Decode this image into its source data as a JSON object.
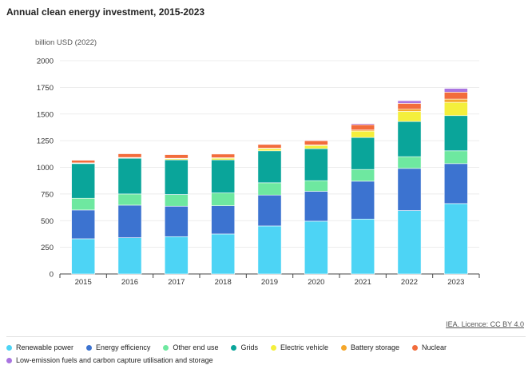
{
  "chart_data": {
    "type": "bar",
    "stacked": true,
    "title": "Annual clean energy investment, 2015-2023",
    "unit_label": "billion USD (2022)",
    "ylim": [
      0,
      2000
    ],
    "y_ticks": [
      0,
      250,
      500,
      750,
      1000,
      1250,
      1500,
      1750,
      2000
    ],
    "grid": true,
    "legend_position": "bottom",
    "categories": [
      "2015",
      "2016",
      "2017",
      "2018",
      "2019",
      "2020",
      "2021",
      "2022",
      "2023"
    ],
    "series": [
      {
        "name": "Renewable power",
        "color": "#4dd4f5",
        "values": [
          330,
          340,
          350,
          375,
          450,
          495,
          515,
          595,
          660
        ]
      },
      {
        "name": "Energy efficiency",
        "color": "#3c73d0",
        "values": [
          270,
          305,
          285,
          265,
          290,
          280,
          355,
          395,
          375
        ]
      },
      {
        "name": "Other end use",
        "color": "#6ee8a0",
        "values": [
          110,
          105,
          110,
          120,
          115,
          100,
          110,
          110,
          120
        ]
      },
      {
        "name": "Grids",
        "color": "#0aa59a",
        "values": [
          325,
          335,
          325,
          310,
          300,
          300,
          300,
          330,
          330
        ]
      },
      {
        "name": "Electric vehicle",
        "color": "#f4ef3c",
        "values": [
          5,
          5,
          10,
          15,
          20,
          30,
          60,
          95,
          125
        ]
      },
      {
        "name": "Battery storage",
        "color": "#f5a72b",
        "values": [
          2,
          3,
          5,
          5,
          5,
          5,
          10,
          20,
          30
        ]
      },
      {
        "name": "Nuclear",
        "color": "#f26c3c",
        "values": [
          25,
          35,
          35,
          35,
          35,
          40,
          50,
          55,
          65
        ]
      },
      {
        "name": "Low-emission fuels and carbon capture utilisation and storage",
        "color": "#a974e0",
        "values": [
          3,
          3,
          3,
          3,
          3,
          5,
          10,
          25,
          35
        ]
      }
    ]
  },
  "source_text": "IEA. Licence: CC BY 4.0"
}
